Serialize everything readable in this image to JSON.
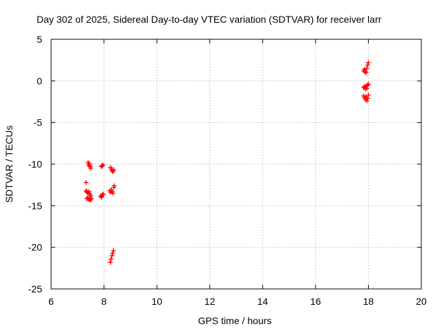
{
  "chart_data": {
    "type": "scatter",
    "title": "Day 302 of 2025, Sidereal Day-to-day VTEC variation (SDTVAR) for receiver larr",
    "xlabel": "GPS time / hours",
    "ylabel": "SDTVAR / TECUs",
    "xlim": [
      6,
      20
    ],
    "ylim": [
      -25,
      5
    ],
    "xticks": [
      6,
      8,
      10,
      12,
      14,
      16,
      18,
      20
    ],
    "yticks": [
      -25,
      -20,
      -15,
      -10,
      -5,
      0,
      5
    ],
    "grid": true,
    "marker": "+",
    "color": "#ff0000",
    "series": [
      {
        "points": [
          [
            7.32,
            -12.2
          ],
          [
            7.33,
            -13.2
          ],
          [
            7.35,
            -13.3
          ],
          [
            7.37,
            -13.4
          ],
          [
            7.4,
            -13.5
          ],
          [
            7.43,
            -13.3
          ],
          [
            7.46,
            -13.6
          ],
          [
            7.5,
            -13.8
          ],
          [
            7.35,
            -14.1
          ],
          [
            7.38,
            -14.1
          ],
          [
            7.41,
            -14.2
          ],
          [
            7.44,
            -14.2
          ],
          [
            7.47,
            -14.3
          ],
          [
            7.5,
            -14.3
          ],
          [
            7.53,
            -14.1
          ],
          [
            7.4,
            -9.8
          ],
          [
            7.42,
            -10.0
          ],
          [
            7.44,
            -10.2
          ],
          [
            7.46,
            -10.0
          ],
          [
            7.48,
            -10.3
          ],
          [
            7.5,
            -10.5
          ],
          [
            7.9,
            -10.3
          ],
          [
            7.93,
            -10.2
          ],
          [
            7.96,
            -10.1
          ],
          [
            7.88,
            -13.8
          ],
          [
            7.91,
            -13.9
          ],
          [
            7.94,
            -13.7
          ],
          [
            7.97,
            -13.6
          ],
          [
            7.9,
            -14.0
          ],
          [
            8.25,
            -10.4
          ],
          [
            8.28,
            -10.6
          ],
          [
            8.31,
            -10.8
          ],
          [
            8.34,
            -10.9
          ],
          [
            8.37,
            -10.7
          ],
          [
            8.22,
            -13.2
          ],
          [
            8.25,
            -13.4
          ],
          [
            8.28,
            -13.1
          ],
          [
            8.31,
            -13.3
          ],
          [
            8.34,
            -13.5
          ],
          [
            8.37,
            -12.8
          ],
          [
            8.39,
            -12.6
          ],
          [
            8.24,
            -21.8
          ],
          [
            8.27,
            -21.4
          ],
          [
            8.3,
            -21.0
          ],
          [
            8.33,
            -20.7
          ],
          [
            8.36,
            -20.4
          ],
          [
            17.82,
            1.2
          ],
          [
            17.85,
            1.4
          ],
          [
            17.88,
            1.1
          ],
          [
            17.91,
            1.0
          ],
          [
            17.94,
            1.5
          ],
          [
            17.97,
            1.9
          ],
          [
            18.0,
            2.2
          ],
          [
            17.82,
            -0.8
          ],
          [
            17.85,
            -0.7
          ],
          [
            17.88,
            -1.0
          ],
          [
            17.91,
            -0.6
          ],
          [
            17.94,
            -0.9
          ],
          [
            17.97,
            -0.5
          ],
          [
            18.0,
            -0.4
          ],
          [
            17.82,
            -1.8
          ],
          [
            17.85,
            -2.0
          ],
          [
            17.88,
            -2.2
          ],
          [
            17.91,
            -1.9
          ],
          [
            17.94,
            -2.4
          ],
          [
            17.97,
            -2.1
          ],
          [
            18.0,
            -1.7
          ]
        ]
      }
    ]
  }
}
